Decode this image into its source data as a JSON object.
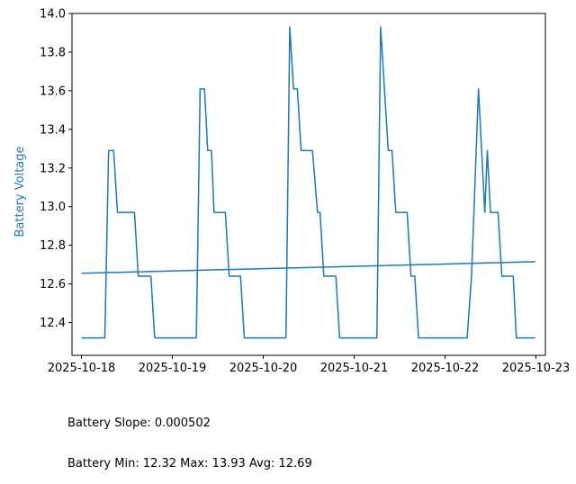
{
  "chart_data": {
    "type": "line",
    "title": "",
    "xlabel": "",
    "ylabel": "Battery Voltage",
    "xlim": [
      "2025-10-17T21:30",
      "2025-10-23T02:30"
    ],
    "ylim": [
      12.23,
      14.0
    ],
    "x_ticks": [
      "2025-10-18",
      "2025-10-19",
      "2025-10-20",
      "2025-10-21",
      "2025-10-22",
      "2025-10-23"
    ],
    "y_ticks": [
      "12.4",
      "12.6",
      "12.8",
      "13.0",
      "13.2",
      "13.4",
      "13.6",
      "13.8",
      "14.0"
    ],
    "grid": false,
    "color": "#1f77b4",
    "series": [
      {
        "name": "",
        "x": [
          "2025-10-18T00:00",
          "2025-10-18T06:10",
          "2025-10-18T07:10",
          "2025-10-18T08:30",
          "2025-10-18T09:30",
          "2025-10-18T14:00",
          "2025-10-18T15:00",
          "2025-10-18T18:20",
          "2025-10-18T19:20",
          "2025-10-19T06:20",
          "2025-10-19T07:20",
          "2025-10-19T08:30",
          "2025-10-19T09:20",
          "2025-10-19T10:20",
          "2025-10-19T11:00",
          "2025-10-19T14:00",
          "2025-10-19T15:00",
          "2025-10-19T18:00",
          "2025-10-19T19:00",
          "2025-10-20T06:00",
          "2025-10-20T07:00",
          "2025-10-20T08:00",
          "2025-10-20T09:00",
          "2025-10-20T10:00",
          "2025-10-20T13:00",
          "2025-10-20T14:20",
          "2025-10-20T15:00",
          "2025-10-20T16:00",
          "2025-10-20T19:10",
          "2025-10-20T20:10",
          "2025-10-21T06:00",
          "2025-10-21T07:00",
          "2025-10-21T09:00",
          "2025-10-21T10:00",
          "2025-10-21T11:00",
          "2025-10-21T14:00",
          "2025-10-21T15:00",
          "2025-10-21T16:00",
          "2025-10-21T17:00",
          "2025-10-21T18:00",
          "2025-10-22T05:50",
          "2025-10-22T07:00",
          "2025-10-22T08:50",
          "2025-10-22T10:30",
          "2025-10-22T11:10",
          "2025-10-22T12:00",
          "2025-10-22T14:00",
          "2025-10-22T15:00",
          "2025-10-22T18:00",
          "2025-10-22T18:50",
          "2025-10-22T23:50"
        ],
        "values": [
          12.32,
          12.32,
          13.29,
          13.29,
          12.97,
          12.97,
          12.64,
          12.64,
          12.32,
          12.32,
          13.61,
          13.61,
          13.29,
          13.29,
          12.97,
          12.97,
          12.64,
          12.64,
          12.32,
          12.32,
          13.93,
          13.61,
          13.61,
          13.29,
          13.29,
          12.97,
          12.97,
          12.64,
          12.64,
          12.32,
          12.32,
          13.93,
          13.29,
          13.29,
          12.97,
          12.97,
          12.64,
          12.64,
          12.32,
          12.32,
          12.32,
          12.64,
          13.61,
          12.97,
          13.29,
          12.97,
          12.97,
          12.64,
          12.64,
          12.32,
          12.32
        ]
      },
      {
        "name": "",
        "x": [
          "2025-10-18T00:00",
          "2025-10-22T23:50"
        ],
        "values": [
          12.655,
          12.715
        ]
      }
    ]
  },
  "footer": {
    "slope_text": "Battery Slope: 0.000502",
    "stats_text": "Battery Min: 12.32 Max: 13.93 Avg: 12.69"
  }
}
